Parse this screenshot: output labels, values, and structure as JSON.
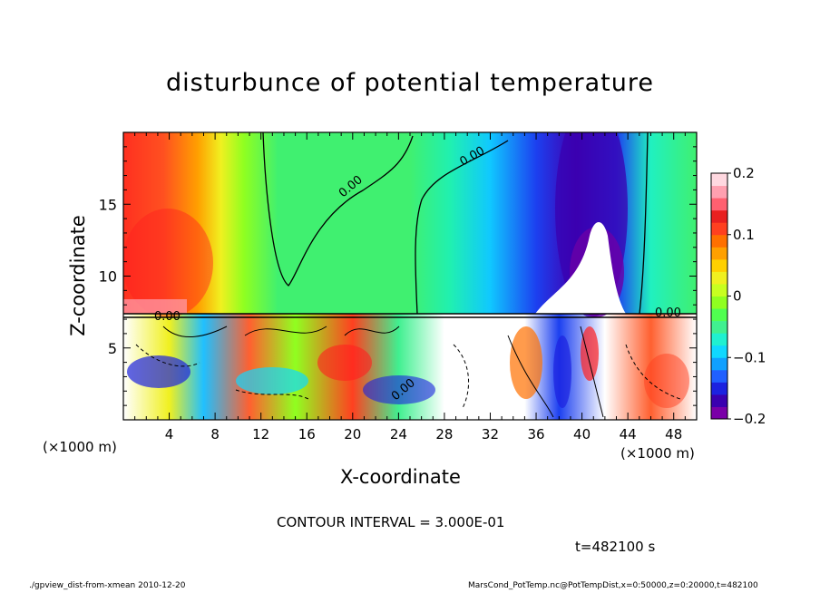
{
  "chart_data": {
    "type": "heatmap",
    "title": "disturbunce of potential temperature",
    "xlabel": "X-coordinate",
    "ylabel": "Z-coordinate",
    "x_unit_label": "(×1000 m)",
    "z_unit_label": "(×1000 m)",
    "x_ticks": [
      4,
      8,
      12,
      16,
      20,
      24,
      28,
      32,
      36,
      40,
      44,
      48
    ],
    "z_ticks": [
      5,
      10,
      15
    ],
    "xlim": [
      0,
      50
    ],
    "zlim": [
      0,
      20
    ],
    "colorbar": {
      "range": [
        -0.2,
        0.2
      ],
      "tick_labels": [
        "0.2",
        "0.1",
        "0",
        "−0.1",
        "−0.2"
      ],
      "tick_values": [
        0.2,
        0.1,
        0,
        -0.1,
        -0.2
      ],
      "colors": [
        "#7a00a8",
        "#3a00b0",
        "#1c22e0",
        "#2060ff",
        "#10a0ff",
        "#10d8ff",
        "#20f0d0",
        "#40f090",
        "#50ff50",
        "#90ff20",
        "#c8ff20",
        "#f0f020",
        "#ffd000",
        "#ffa000",
        "#ff7000",
        "#ff4020",
        "#e82020",
        "#ff6070",
        "#ffa0b0",
        "#ffd8e0"
      ]
    },
    "contour_label": "0.00",
    "contour_interval_text": "CONTOUR INTERVAL = 3.000E-01",
    "time_text": "t=482100 s"
  },
  "footer": {
    "left": "./gpview_dist-from-xmean   2010-12-20",
    "right": "MarsCond_PotTemp.nc@PotTempDist,x=0:50000,z=0:20000,t=482100"
  }
}
